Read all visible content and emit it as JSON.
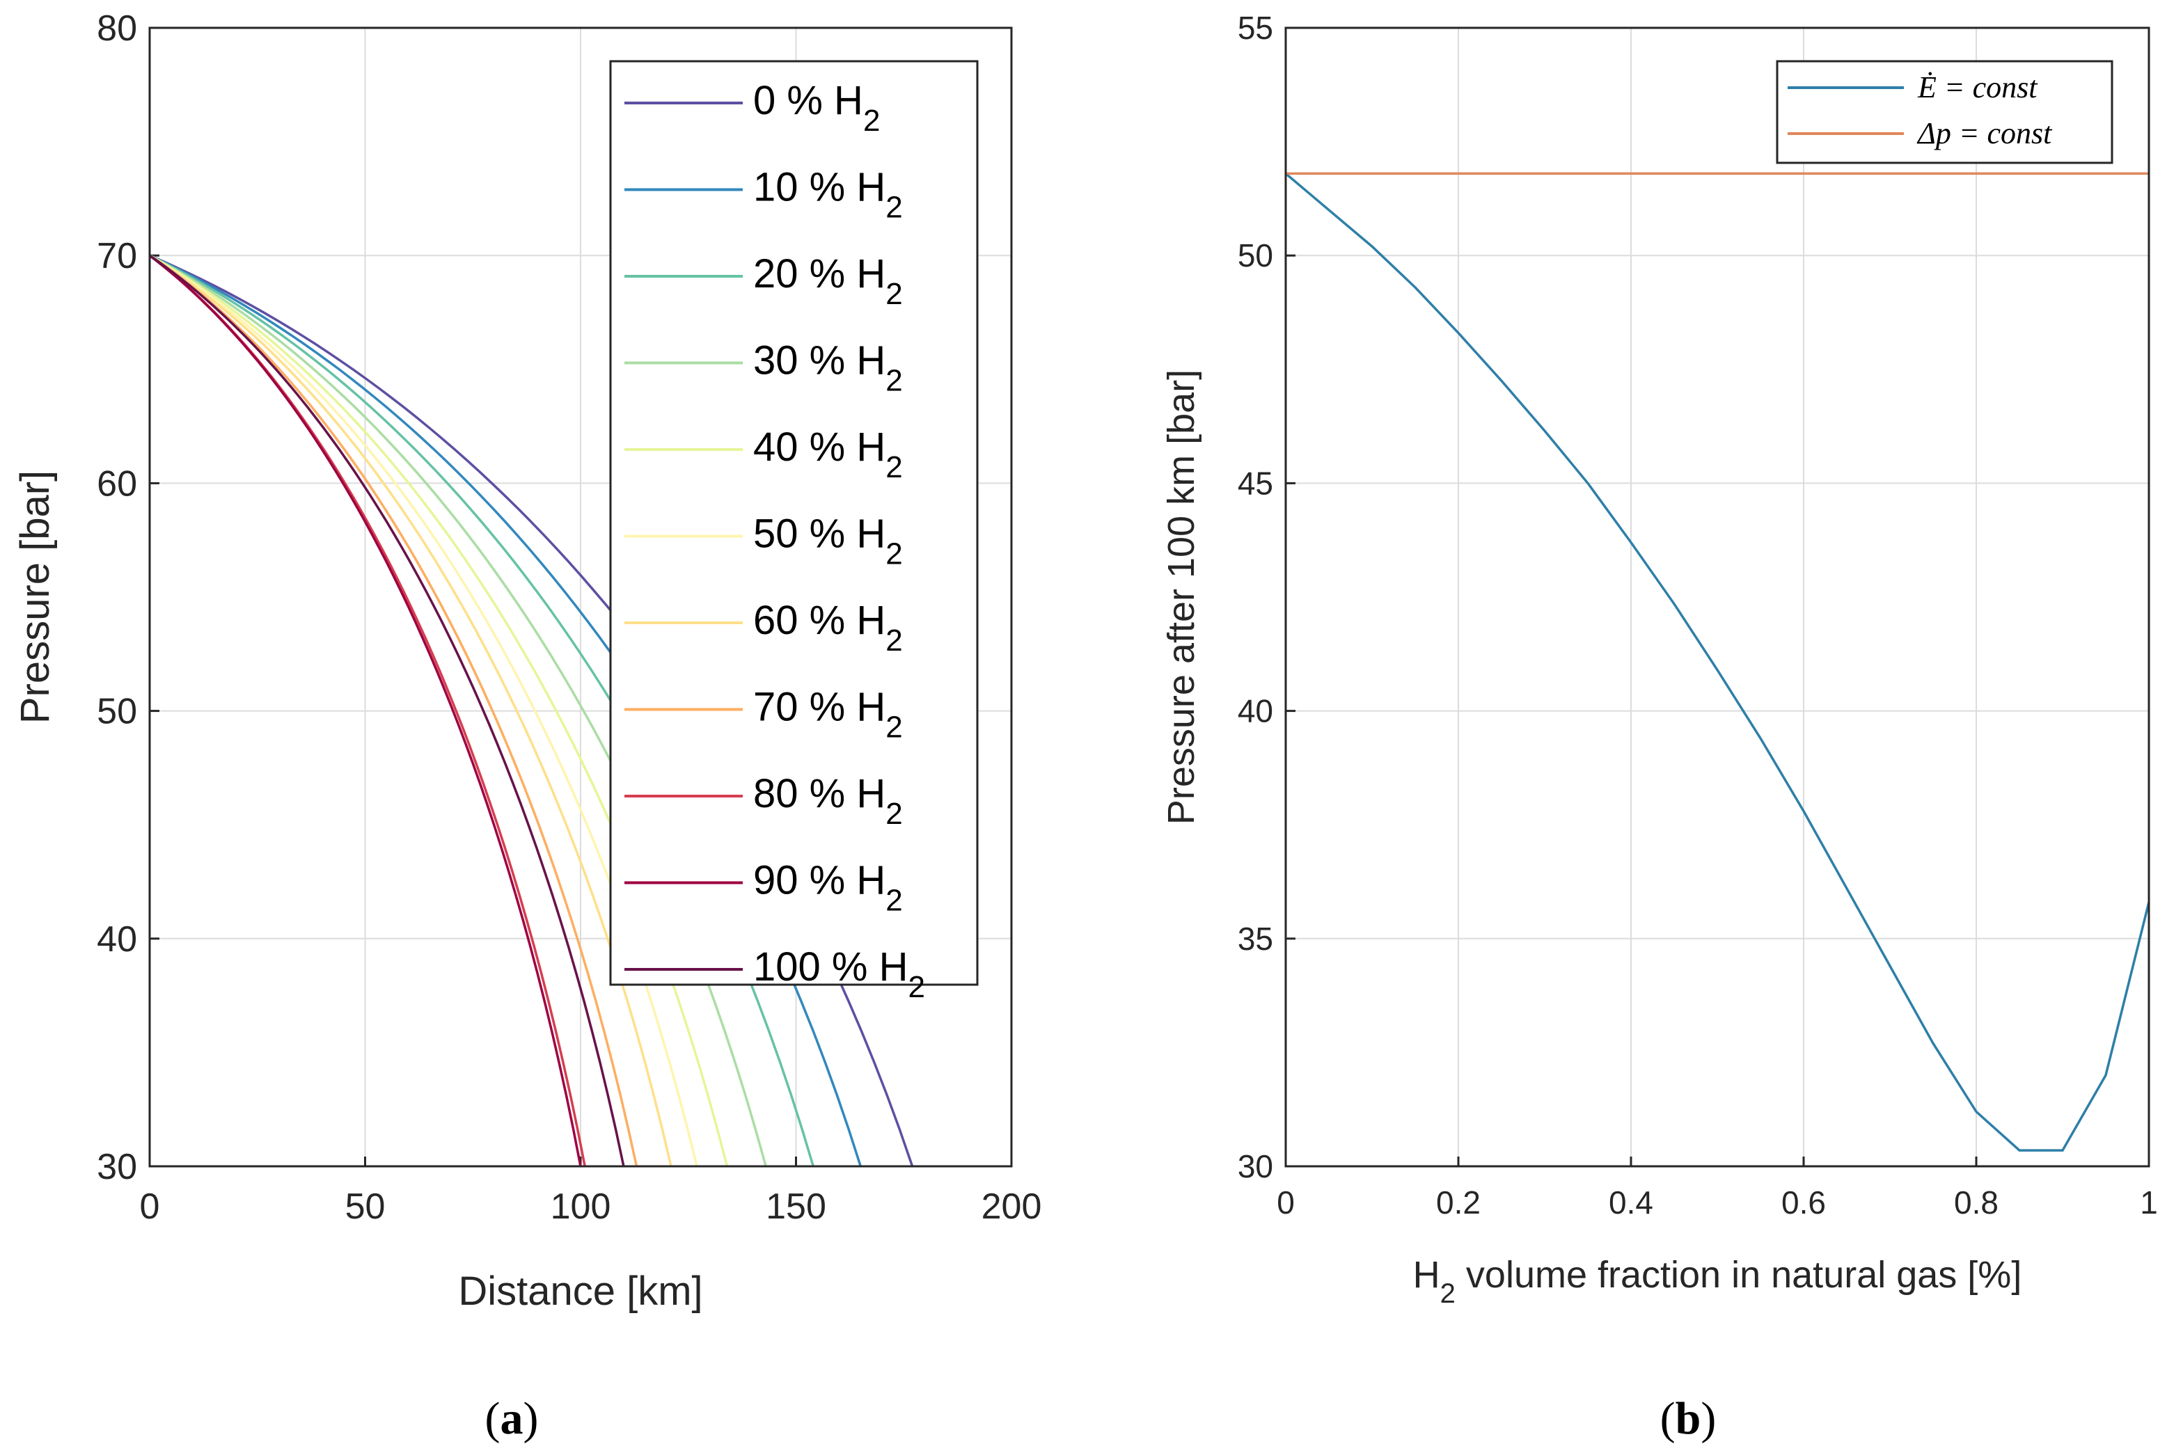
{
  "chart_data": [
    {
      "type": "line",
      "panel_label": "a",
      "xlabel": "Distance [km]",
      "ylabel": "Pressure [bar]",
      "xlim": [
        0,
        200
      ],
      "ylim": [
        30,
        80
      ],
      "xticks": [
        "0",
        "50",
        "100",
        "150",
        "200"
      ],
      "yticks": [
        "30",
        "40",
        "50",
        "60",
        "70",
        "80"
      ],
      "grid": true,
      "legend_position": "top-right",
      "series": [
        {
          "name": "0 % H",
          "sub": "2",
          "color": "#5e4fa2",
          "x_end": 177
        },
        {
          "name": "10 % H",
          "sub": "2",
          "color": "#3288bd",
          "x_end": 165
        },
        {
          "name": "20 % H",
          "sub": "2",
          "color": "#66c2a5",
          "x_end": 154
        },
        {
          "name": "30 % H",
          "sub": "2",
          "color": "#abdda4",
          "x_end": 143
        },
        {
          "name": "40 % H",
          "sub": "2",
          "color": "#e6f598",
          "x_end": 134
        },
        {
          "name": "50 % H",
          "sub": "2",
          "color": "#fff4b0",
          "x_end": 127
        },
        {
          "name": "60 % H",
          "sub": "2",
          "color": "#fee08b",
          "x_end": 121
        },
        {
          "name": "70 % H",
          "sub": "2",
          "color": "#fdae61",
          "x_end": 113
        },
        {
          "name": "80 % H",
          "sub": "2",
          "color": "#d53e4f",
          "x_end": 101
        },
        {
          "name": "90 % H",
          "sub": "2",
          "color": "#9e0142",
          "x_end": 100
        },
        {
          "name": "100 % H",
          "sub": "2",
          "color": "#68124a",
          "x_end": 110
        }
      ]
    },
    {
      "type": "line",
      "panel_label": "b",
      "xlabel_main": "H",
      "xlabel_sub": "2",
      "xlabel_rest": " volume fraction in natural gas [%]",
      "ylabel": "Pressure after 100 km [bar]",
      "xlim": [
        0,
        1
      ],
      "ylim": [
        30,
        55
      ],
      "xticks": [
        "0",
        "0.2",
        "0.4",
        "0.6",
        "0.8",
        "1"
      ],
      "yticks": [
        "30",
        "35",
        "40",
        "45",
        "50",
        "55"
      ],
      "grid": true,
      "legend_position": "top-right",
      "series": [
        {
          "name": "Ė = const",
          "color": "#2e7fa8",
          "x": [
            0,
            0.05,
            0.1,
            0.15,
            0.2,
            0.25,
            0.3,
            0.35,
            0.4,
            0.45,
            0.5,
            0.55,
            0.6,
            0.65,
            0.7,
            0.75,
            0.8,
            0.85,
            0.9,
            0.95,
            1.0
          ],
          "y": [
            51.8,
            51.0,
            50.2,
            49.3,
            48.3,
            47.25,
            46.15,
            45.0,
            43.7,
            42.35,
            40.9,
            39.4,
            37.8,
            36.1,
            34.4,
            32.7,
            31.2,
            30.35,
            30.35,
            32.0,
            35.8
          ]
        },
        {
          "name": "Δp = const",
          "color": "#e0875a",
          "x": [
            0,
            1
          ],
          "y": [
            51.8,
            51.8
          ]
        }
      ]
    }
  ]
}
